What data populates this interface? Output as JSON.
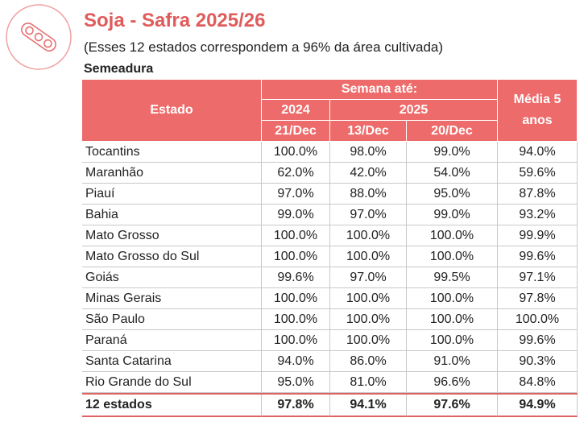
{
  "header": {
    "title": "Soja - Safra 2025/26",
    "subtitle": "(Esses 12 estados correspondem a 96% da área cultivada)",
    "section": "Semeadura"
  },
  "table": {
    "columns": {
      "state": "Estado",
      "week": "Semana até:",
      "year_a": "2024",
      "year_b": "2025",
      "dates": [
        "21/Dec",
        "13/Dec",
        "20/Dec"
      ],
      "average": "Média  5 anos"
    },
    "rows": [
      [
        "Tocantins",
        "100.0%",
        "98.0%",
        "99.0%",
        "94.0%"
      ],
      [
        "Maranhão",
        "62.0%",
        "42.0%",
        "54.0%",
        "59.6%"
      ],
      [
        "Piauí",
        "97.0%",
        "88.0%",
        "95.0%",
        "87.8%"
      ],
      [
        "Bahia",
        "99.0%",
        "97.0%",
        "99.0%",
        "93.2%"
      ],
      [
        "Mato Grosso",
        "100.0%",
        "100.0%",
        "100.0%",
        "99.9%"
      ],
      [
        "Mato Grosso do Sul",
        "100.0%",
        "100.0%",
        "100.0%",
        "99.6%"
      ],
      [
        "Goiás",
        "99.6%",
        "97.0%",
        "99.5%",
        "97.1%"
      ],
      [
        "Minas Gerais",
        "100.0%",
        "100.0%",
        "100.0%",
        "97.8%"
      ],
      [
        "São Paulo",
        "100.0%",
        "100.0%",
        "100.0%",
        "100.0%"
      ],
      [
        "Paraná",
        "100.0%",
        "100.0%",
        "100.0%",
        "99.6%"
      ],
      [
        "Santa Catarina",
        "94.0%",
        "86.0%",
        "91.0%",
        "90.3%"
      ],
      [
        "Rio Grande do Sul",
        "95.0%",
        "81.0%",
        "96.6%",
        "84.8%"
      ]
    ],
    "total": [
      "12 estados",
      "97.8%",
      "94.1%",
      "97.6%",
      "94.9%"
    ]
  }
}
